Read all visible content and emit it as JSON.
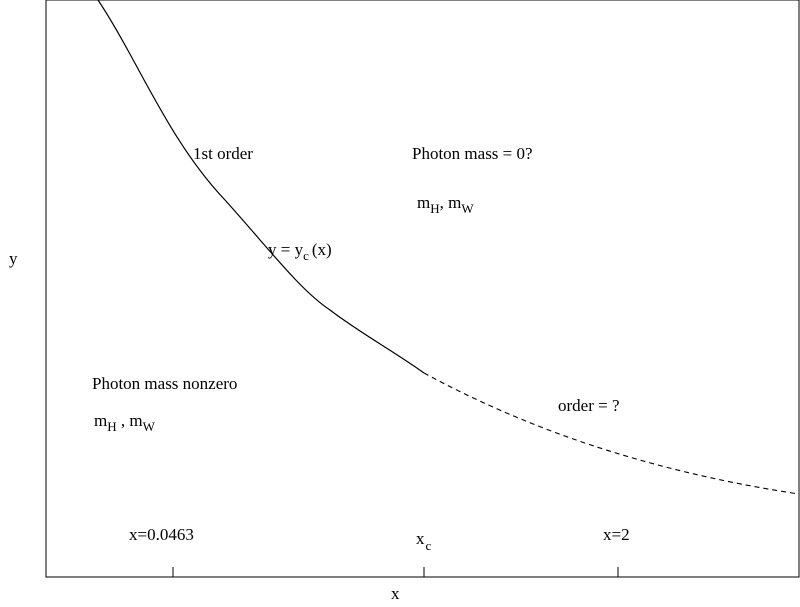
{
  "axes": {
    "xlabel": "x",
    "ylabel": "y"
  },
  "ticks": [
    {
      "label": "x=0.0463"
    },
    {
      "label_main": "x",
      "label_sub": "c"
    },
    {
      "label": "x=2"
    }
  ],
  "curve": {
    "equation_main": "y = y",
    "equation_sub": "c",
    "equation_tail": "(x)"
  },
  "regions": {
    "first_order": "1st order",
    "massless_phase": {
      "title": "Photon mass = 0?",
      "mass_1": "m",
      "mass_1_sub": "H",
      "separator": ", ",
      "mass_2": "m",
      "mass_2_sub": "W"
    },
    "massive_phase": {
      "title": "Photon mass nonzero",
      "mass_1": "m",
      "mass_1_sub": "H",
      "separator": " , ",
      "mass_2": "m",
      "mass_2_sub": "W"
    },
    "unknown_order": "order = ?"
  },
  "colors": {
    "line": "#000000",
    "background": "#ffffff"
  }
}
